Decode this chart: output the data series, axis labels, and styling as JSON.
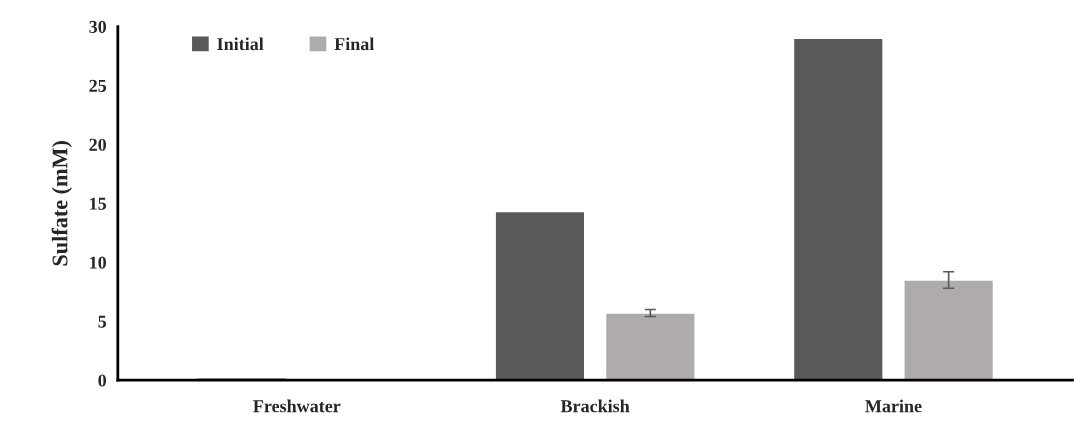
{
  "chart_data": {
    "type": "bar",
    "ylabel": "Sulfate (mM)",
    "categories": [
      "Freshwater",
      "Brackish",
      "Marine"
    ],
    "series": [
      {
        "name": "Initial",
        "color": "#595959",
        "values": [
          0.2,
          14.3,
          29
        ]
      },
      {
        "name": "Final",
        "color": "#afabab",
        "values": [
          null,
          5.7,
          8.5
        ],
        "errors": [
          null,
          0.3,
          0.7
        ]
      }
    ],
    "ylim": [
      0,
      30
    ],
    "yticks": [
      0,
      5,
      10,
      15,
      20,
      25,
      30
    ],
    "grid": false,
    "legend": "top left"
  }
}
